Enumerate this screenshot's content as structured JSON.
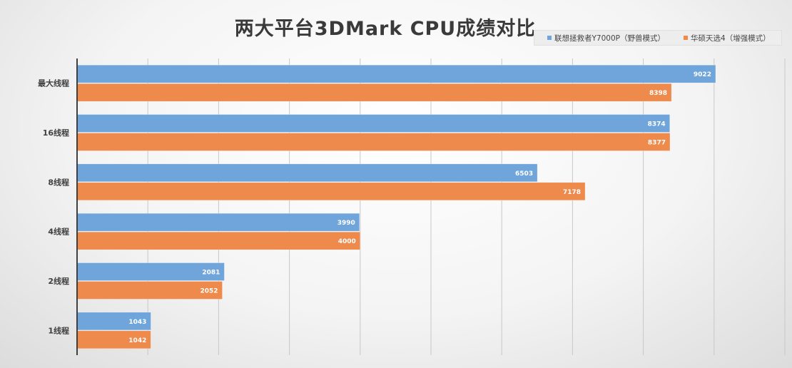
{
  "chart_data": {
    "type": "bar",
    "orientation": "horizontal",
    "title": "两大平台3DMark  CPU成绩对比",
    "categories": [
      "最大线程",
      "16线程",
      "8线程",
      "4线程",
      "2线程",
      "1线程"
    ],
    "series": [
      {
        "name": "联想拯救者Y7000P（野兽模式）",
        "color": "#6fa5da",
        "values": [
          9022,
          8374,
          6503,
          3990,
          2081,
          1043
        ]
      },
      {
        "name": "华硕天选4（增强模式）",
        "color": "#ee8a4b",
        "values": [
          8398,
          8377,
          7178,
          4000,
          2052,
          1042
        ]
      }
    ],
    "xlim": [
      0,
      10000
    ],
    "x_gridlines": [
      0,
      1000,
      2000,
      3000,
      4000,
      5000,
      6000,
      7000,
      8000,
      9000,
      10000
    ],
    "data_labels": true,
    "legend_position": "top-right",
    "grid": true
  }
}
